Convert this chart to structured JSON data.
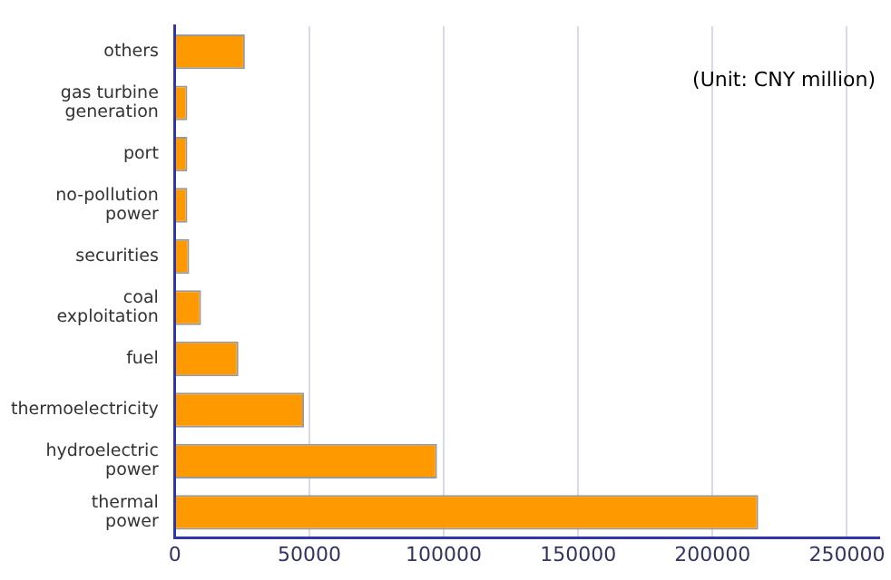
{
  "chart_data": {
    "type": "bar",
    "orientation": "horizontal",
    "categories": [
      "others",
      "gas turbine generation",
      "port",
      "no-pollution power",
      "securities",
      "coal exploitation",
      "fuel",
      "thermoelectricity",
      "hydroelectric power",
      "thermal power"
    ],
    "values": [
      26000,
      4600,
      4600,
      4600,
      5300,
      9700,
      23600,
      48000,
      97500,
      217000
    ],
    "color": "#ff9900",
    "xlim": [
      0,
      262000
    ],
    "xticks": [
      0,
      50000,
      100000,
      150000,
      200000,
      250000
    ],
    "grid": "x",
    "legend": false,
    "annotations": [
      "(Unit: CNY million)"
    ]
  }
}
